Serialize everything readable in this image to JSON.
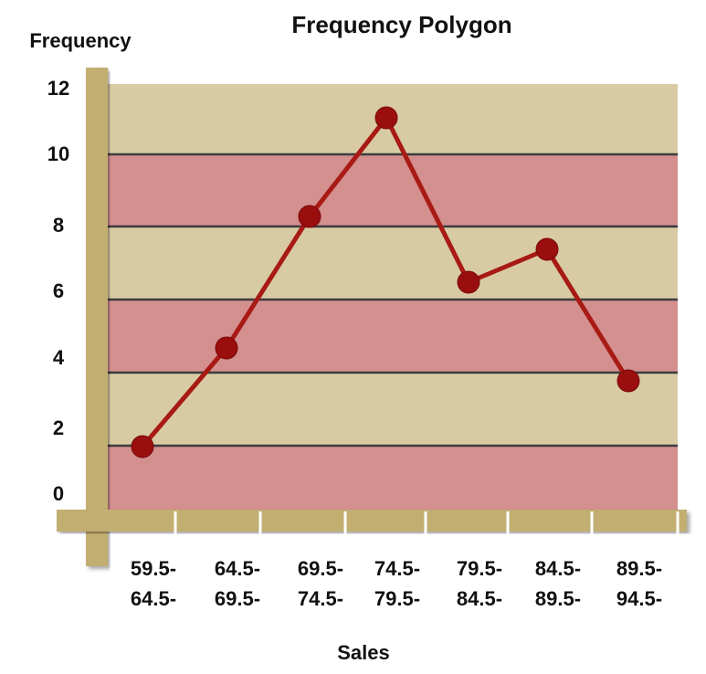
{
  "chart_data": {
    "type": "line",
    "title": "Frequency Polygon",
    "ylabel": "Frequency",
    "xlabel": "Sales",
    "ylim": [
      0,
      12
    ],
    "yticks": [
      0,
      2,
      4,
      6,
      8,
      10,
      12
    ],
    "categories": [
      [
        "59.5-",
        "64.5-"
      ],
      [
        "64.5-",
        "69.5-"
      ],
      [
        "69.5-",
        "74.5-"
      ],
      [
        "74.5-",
        "79.5-"
      ],
      [
        "79.5-",
        "84.5-"
      ],
      [
        "84.5-",
        "89.5-"
      ],
      [
        "89.5-",
        "94.5-"
      ]
    ],
    "values": [
      1,
      4,
      8,
      11,
      6,
      7,
      3
    ],
    "grid": true,
    "colors": {
      "line": "#a81a14",
      "marker": "#9a0e0e",
      "band_light": "#d8cba4",
      "band_dark": "#d48f8f",
      "axis": "#c3ae72",
      "gridline": "#3c3c3c"
    }
  }
}
